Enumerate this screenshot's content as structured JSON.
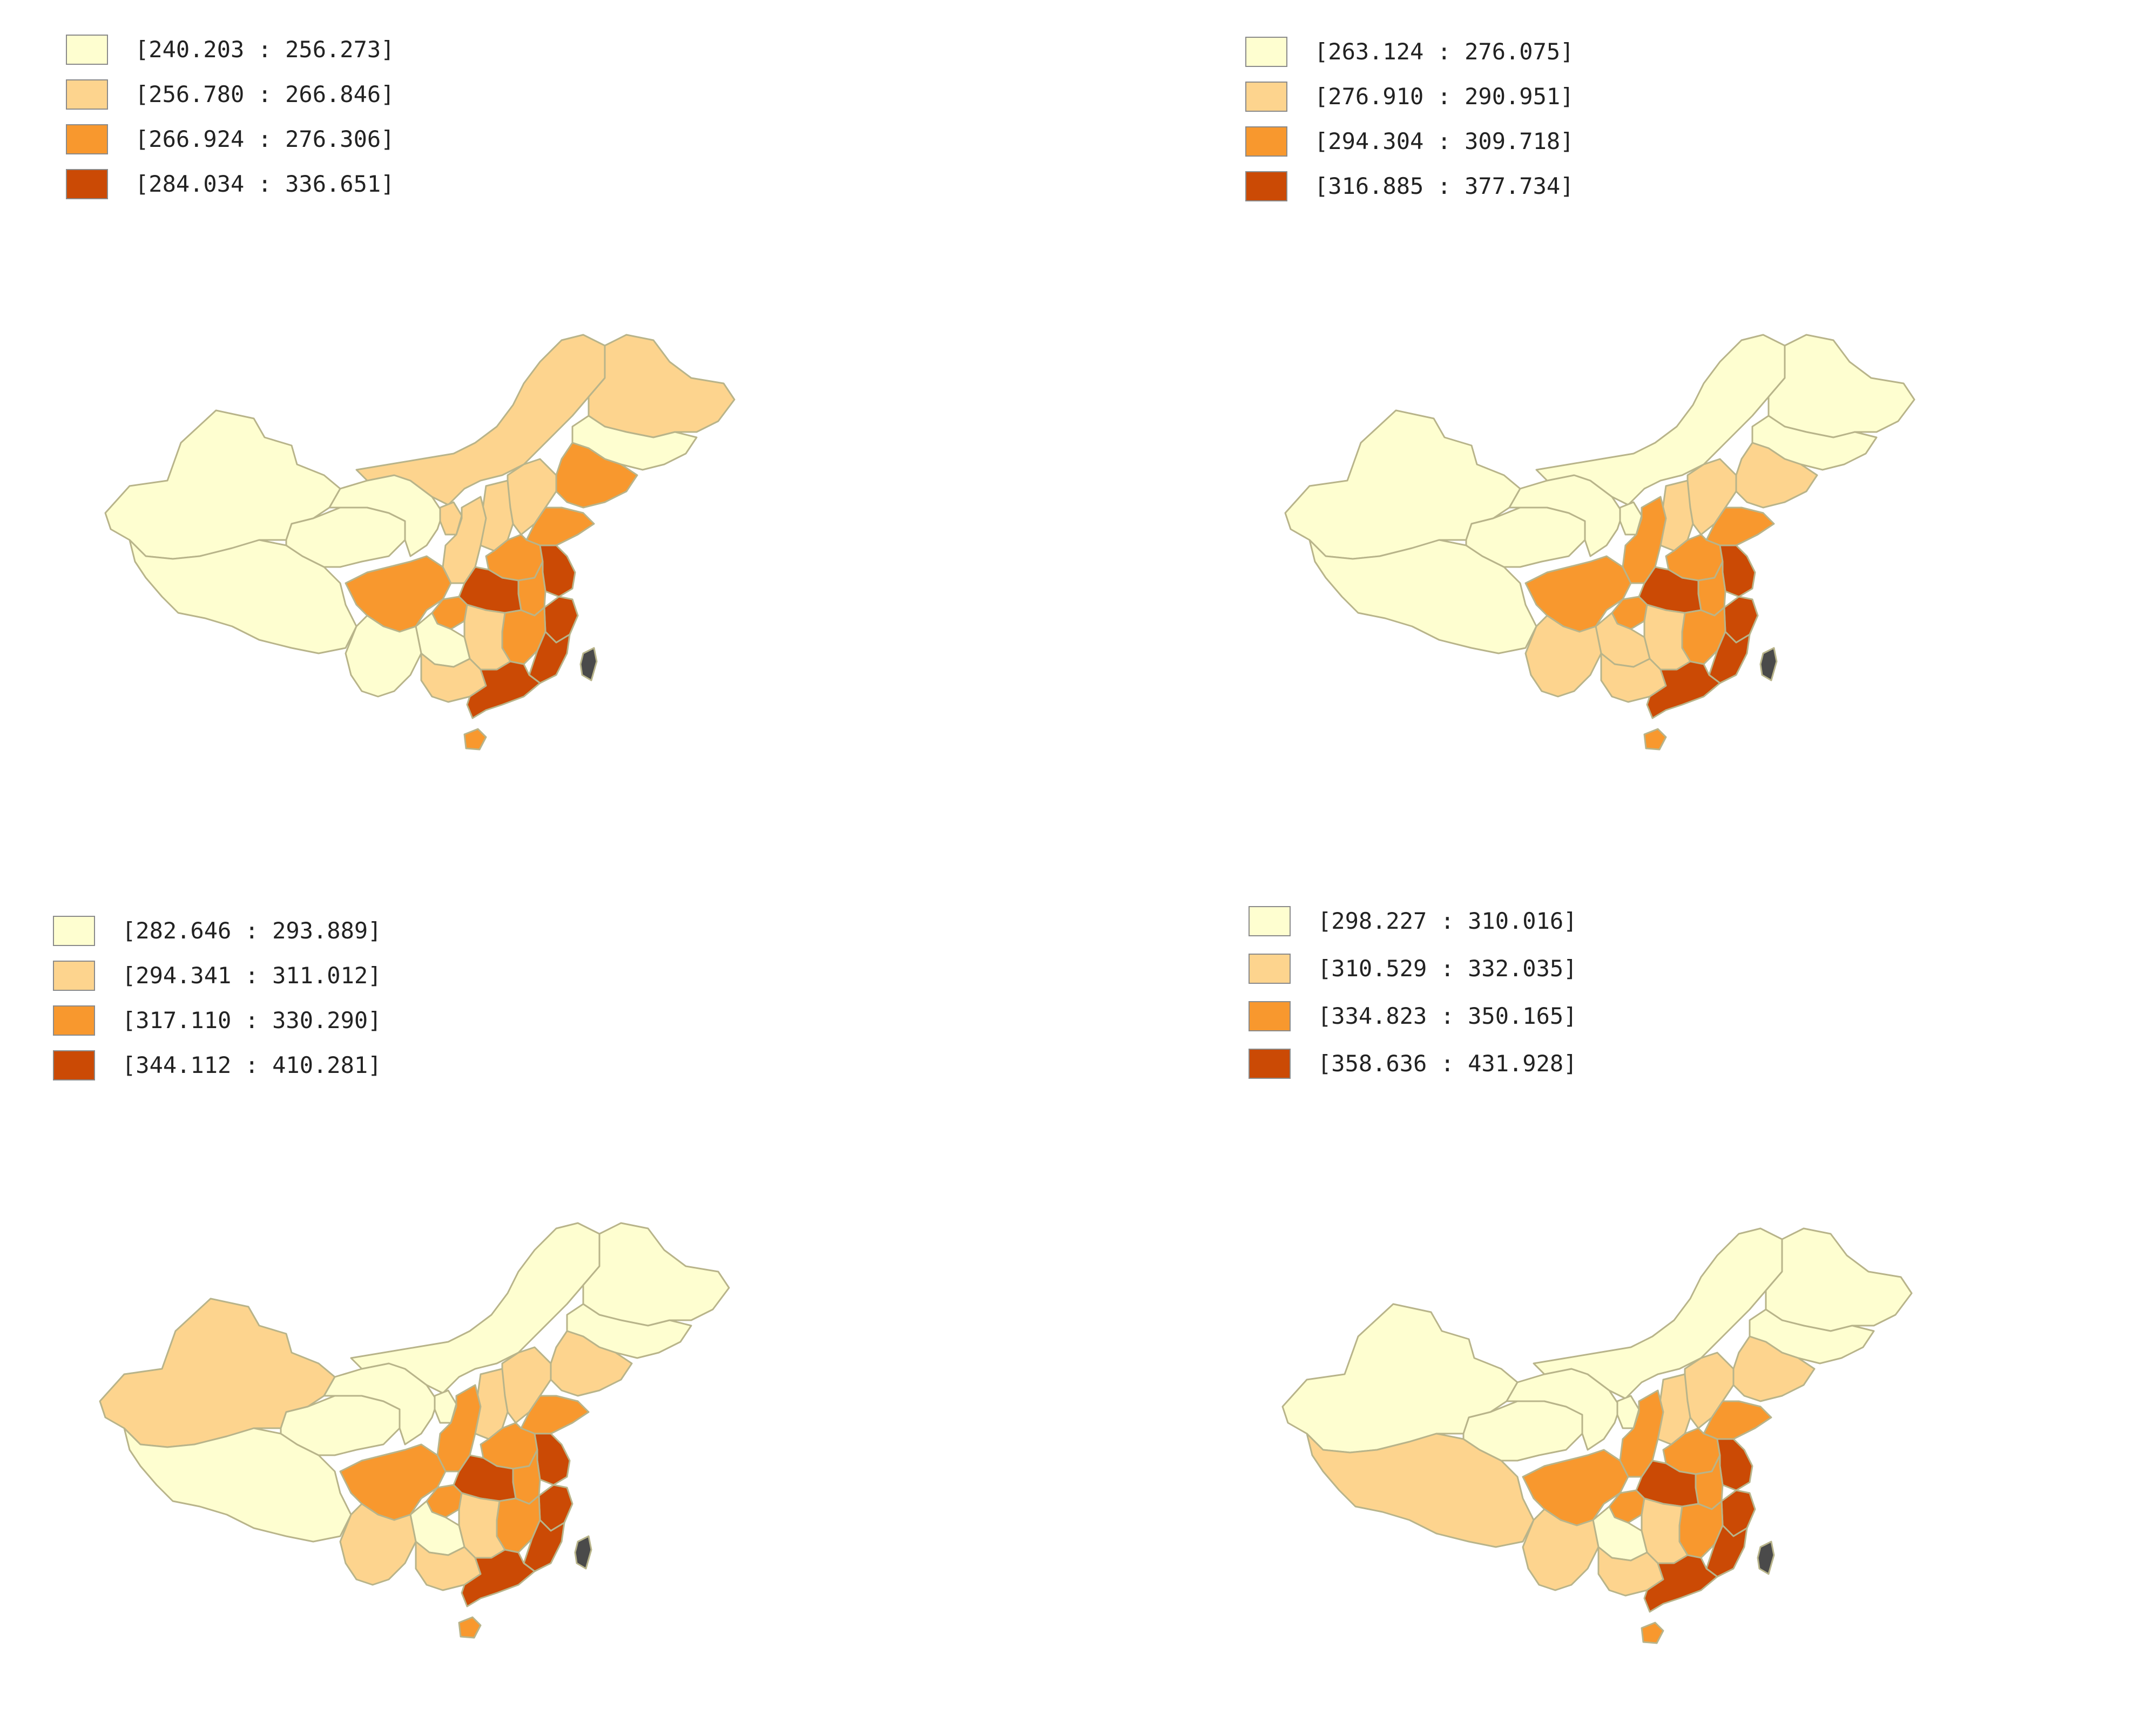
{
  "colors": {
    "class_1": "#fefed0",
    "class_2": "#fdd48e",
    "class_3": "#f8982e",
    "class_4": "#cb4a05",
    "no_data": "#4a4a4a",
    "border": "#b8b48a"
  },
  "panels": [
    {
      "legend": [
        {
          "range": "[240.203 : 256.273]",
          "class": "class_1"
        },
        {
          "range": "[256.780 : 266.846]",
          "class": "class_2"
        },
        {
          "range": "[266.924 : 276.306]",
          "class": "class_3"
        },
        {
          "range": "[284.034 : 336.651]",
          "class": "class_4"
        }
      ],
      "regions": {
        "xinjiang": "class_1",
        "tibet": "class_1",
        "qinghai": "class_1",
        "gansu": "class_1",
        "inner_mongolia": "class_2",
        "heilongjiang": "class_2",
        "jilin": "class_1",
        "liaoning": "class_3",
        "beijing": "class_4",
        "hebei": "class_2",
        "shanxi": "class_2",
        "shaanxi": "class_2",
        "ningxia": "class_2",
        "shandong": "class_3",
        "henan": "class_3",
        "jiangsu": "class_4",
        "anhui": "class_3",
        "hubei": "class_4",
        "sichuan": "class_3",
        "chongqing": "class_3",
        "zhejiang": "class_4",
        "jiangxi": "class_3",
        "hunan": "class_2",
        "guizhou": "class_1",
        "yunnan": "class_1",
        "guangxi": "class_2",
        "guangdong": "class_4",
        "fujian": "class_4",
        "hainan": "class_3",
        "taiwan": "no_data"
      }
    },
    {
      "legend": [
        {
          "range": "[263.124 : 276.075]",
          "class": "class_1"
        },
        {
          "range": "[276.910 : 290.951]",
          "class": "class_2"
        },
        {
          "range": "[294.304 : 309.718]",
          "class": "class_3"
        },
        {
          "range": "[316.885 : 377.734]",
          "class": "class_4"
        }
      ],
      "regions": {
        "xinjiang": "class_1",
        "tibet": "class_1",
        "qinghai": "class_1",
        "gansu": "class_1",
        "inner_mongolia": "class_1",
        "heilongjiang": "class_1",
        "jilin": "class_1",
        "liaoning": "class_2",
        "beijing": "class_4",
        "hebei": "class_2",
        "shanxi": "class_2",
        "shaanxi": "class_3",
        "ningxia": "class_1",
        "shandong": "class_3",
        "henan": "class_3",
        "jiangsu": "class_4",
        "anhui": "class_3",
        "hubei": "class_4",
        "sichuan": "class_3",
        "chongqing": "class_3",
        "zhejiang": "class_4",
        "jiangxi": "class_3",
        "hunan": "class_2",
        "guizhou": "class_2",
        "yunnan": "class_2",
        "guangxi": "class_2",
        "guangdong": "class_4",
        "fujian": "class_4",
        "hainan": "class_3",
        "taiwan": "no_data"
      }
    },
    {
      "legend": [
        {
          "range": "[282.646 : 293.889]",
          "class": "class_1"
        },
        {
          "range": "[294.341 : 311.012]",
          "class": "class_2"
        },
        {
          "range": "[317.110 : 330.290]",
          "class": "class_3"
        },
        {
          "range": "[344.112 : 410.281]",
          "class": "class_4"
        }
      ],
      "regions": {
        "xinjiang": "class_2",
        "tibet": "class_1",
        "qinghai": "class_1",
        "gansu": "class_1",
        "inner_mongolia": "class_1",
        "heilongjiang": "class_1",
        "jilin": "class_1",
        "liaoning": "class_2",
        "beijing": "class_4",
        "hebei": "class_2",
        "shanxi": "class_2",
        "shaanxi": "class_3",
        "ningxia": "class_1",
        "shandong": "class_3",
        "henan": "class_3",
        "jiangsu": "class_4",
        "anhui": "class_3",
        "hubei": "class_4",
        "sichuan": "class_3",
        "chongqing": "class_3",
        "zhejiang": "class_4",
        "jiangxi": "class_3",
        "hunan": "class_2",
        "guizhou": "class_1",
        "yunnan": "class_2",
        "guangxi": "class_2",
        "guangdong": "class_4",
        "fujian": "class_4",
        "hainan": "class_3",
        "taiwan": "no_data"
      }
    },
    {
      "legend": [
        {
          "range": "[298.227 : 310.016]",
          "class": "class_1"
        },
        {
          "range": "[310.529 : 332.035]",
          "class": "class_2"
        },
        {
          "range": "[334.823 : 350.165]",
          "class": "class_3"
        },
        {
          "range": "[358.636 : 431.928]",
          "class": "class_4"
        }
      ],
      "regions": {
        "xinjiang": "class_1",
        "tibet": "class_2",
        "qinghai": "class_1",
        "gansu": "class_1",
        "inner_mongolia": "class_1",
        "heilongjiang": "class_1",
        "jilin": "class_1",
        "liaoning": "class_2",
        "beijing": "class_4",
        "hebei": "class_2",
        "shanxi": "class_2",
        "shaanxi": "class_3",
        "ningxia": "class_1",
        "shandong": "class_3",
        "henan": "class_3",
        "jiangsu": "class_4",
        "anhui": "class_3",
        "hubei": "class_4",
        "sichuan": "class_3",
        "chongqing": "class_3",
        "zhejiang": "class_4",
        "jiangxi": "class_3",
        "hunan": "class_2",
        "guizhou": "class_1",
        "yunnan": "class_2",
        "guangxi": "class_2",
        "guangdong": "class_4",
        "fujian": "class_4",
        "hainan": "class_3",
        "taiwan": "no_data"
      }
    }
  ]
}
